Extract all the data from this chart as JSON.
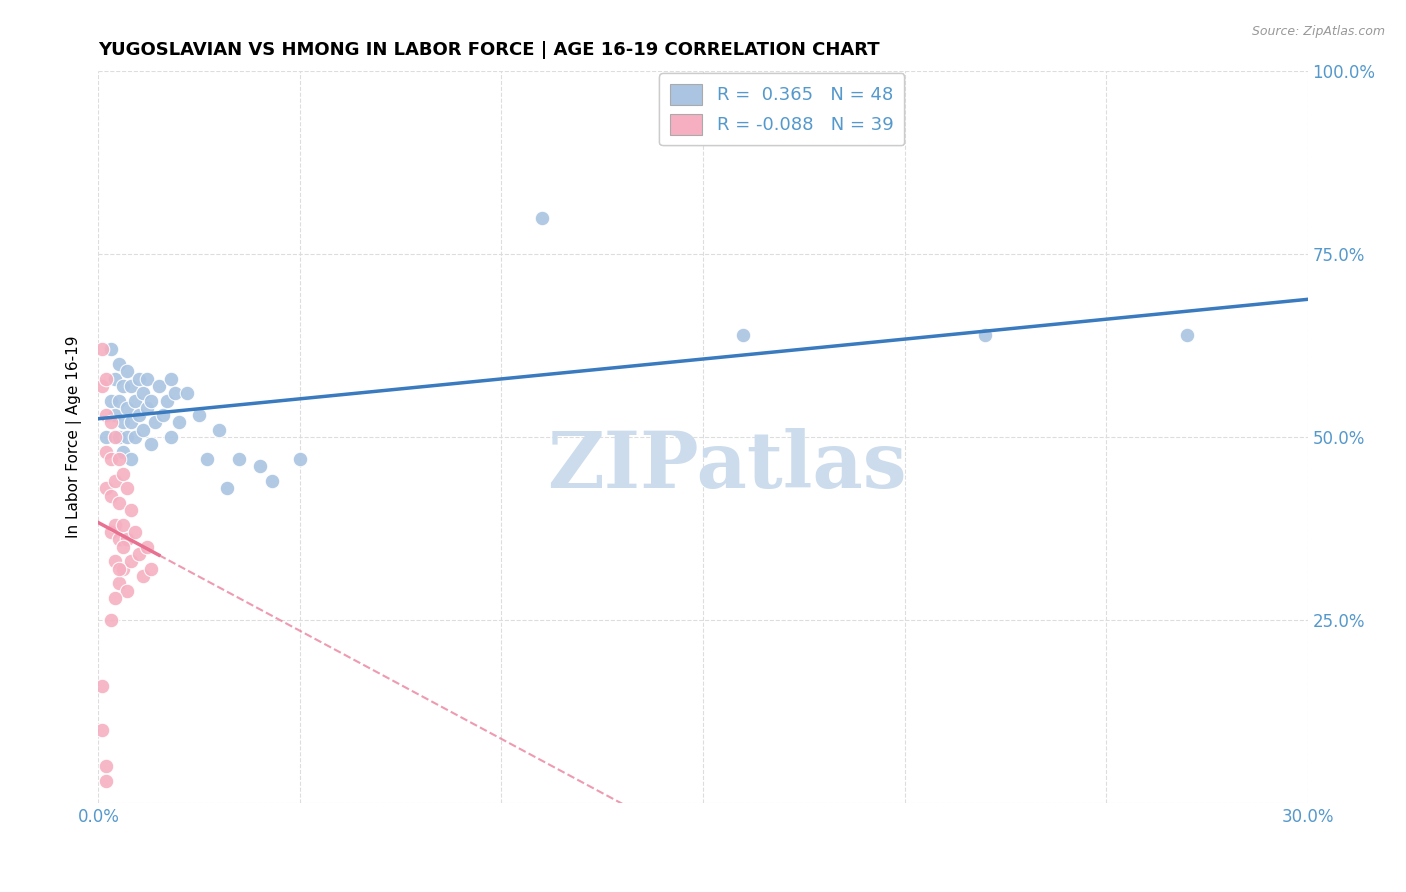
{
  "title": "YUGOSLAVIAN VS HMONG IN LABOR FORCE | AGE 16-19 CORRELATION CHART",
  "source": "Source: ZipAtlas.com",
  "ylabel": "In Labor Force | Age 16-19",
  "x_min": 0.0,
  "x_max": 0.3,
  "y_min": 0.0,
  "y_max": 1.0,
  "x_ticks": [
    0.0,
    0.05,
    0.1,
    0.15,
    0.2,
    0.25,
    0.3
  ],
  "x_tick_labels": [
    "0.0%",
    "",
    "",
    "",
    "",
    "",
    "30.0%"
  ],
  "y_ticks": [
    0.0,
    0.25,
    0.5,
    0.75,
    1.0
  ],
  "y_tick_labels": [
    "",
    "25.0%",
    "50.0%",
    "75.0%",
    "100.0%"
  ],
  "yugo_color": "#aac4e2",
  "hmong_color": "#f5afc0",
  "yugo_line_color": "#3a7abf",
  "hmong_line_color": "#e87090",
  "R_yugo": "0.365",
  "N_yugo": "48",
  "R_hmong": "-0.088",
  "N_hmong": "39",
  "watermark": "ZIPatlas",
  "watermark_color": "#ccdcec",
  "tick_label_color": "#5599cc",
  "background_color": "#ffffff",
  "grid_color": "#dddddd",
  "yugo_scatter": [
    [
      0.002,
      0.5
    ],
    [
      0.003,
      0.55
    ],
    [
      0.003,
      0.62
    ],
    [
      0.004,
      0.58
    ],
    [
      0.004,
      0.53
    ],
    [
      0.005,
      0.6
    ],
    [
      0.005,
      0.55
    ],
    [
      0.005,
      0.5
    ],
    [
      0.006,
      0.57
    ],
    [
      0.006,
      0.52
    ],
    [
      0.006,
      0.48
    ],
    [
      0.007,
      0.59
    ],
    [
      0.007,
      0.54
    ],
    [
      0.007,
      0.5
    ],
    [
      0.008,
      0.57
    ],
    [
      0.008,
      0.52
    ],
    [
      0.008,
      0.47
    ],
    [
      0.009,
      0.55
    ],
    [
      0.009,
      0.5
    ],
    [
      0.01,
      0.58
    ],
    [
      0.01,
      0.53
    ],
    [
      0.011,
      0.56
    ],
    [
      0.011,
      0.51
    ],
    [
      0.012,
      0.58
    ],
    [
      0.012,
      0.54
    ],
    [
      0.013,
      0.55
    ],
    [
      0.013,
      0.49
    ],
    [
      0.014,
      0.52
    ],
    [
      0.015,
      0.57
    ],
    [
      0.016,
      0.53
    ],
    [
      0.017,
      0.55
    ],
    [
      0.018,
      0.58
    ],
    [
      0.018,
      0.5
    ],
    [
      0.019,
      0.56
    ],
    [
      0.02,
      0.52
    ],
    [
      0.022,
      0.56
    ],
    [
      0.025,
      0.53
    ],
    [
      0.027,
      0.47
    ],
    [
      0.03,
      0.51
    ],
    [
      0.032,
      0.43
    ],
    [
      0.035,
      0.47
    ],
    [
      0.04,
      0.46
    ],
    [
      0.043,
      0.44
    ],
    [
      0.05,
      0.47
    ],
    [
      0.11,
      0.8
    ],
    [
      0.16,
      0.64
    ],
    [
      0.22,
      0.64
    ],
    [
      0.27,
      0.64
    ]
  ],
  "hmong_scatter": [
    [
      0.001,
      0.62
    ],
    [
      0.001,
      0.57
    ],
    [
      0.002,
      0.58
    ],
    [
      0.002,
      0.53
    ],
    [
      0.002,
      0.48
    ],
    [
      0.002,
      0.43
    ],
    [
      0.003,
      0.52
    ],
    [
      0.003,
      0.47
    ],
    [
      0.003,
      0.42
    ],
    [
      0.003,
      0.37
    ],
    [
      0.004,
      0.5
    ],
    [
      0.004,
      0.44
    ],
    [
      0.004,
      0.38
    ],
    [
      0.004,
      0.33
    ],
    [
      0.005,
      0.47
    ],
    [
      0.005,
      0.41
    ],
    [
      0.005,
      0.36
    ],
    [
      0.005,
      0.3
    ],
    [
      0.006,
      0.45
    ],
    [
      0.006,
      0.38
    ],
    [
      0.006,
      0.32
    ],
    [
      0.007,
      0.43
    ],
    [
      0.007,
      0.36
    ],
    [
      0.007,
      0.29
    ],
    [
      0.008,
      0.4
    ],
    [
      0.008,
      0.33
    ],
    [
      0.009,
      0.37
    ],
    [
      0.01,
      0.34
    ],
    [
      0.011,
      0.31
    ],
    [
      0.012,
      0.35
    ],
    [
      0.013,
      0.32
    ],
    [
      0.001,
      0.16
    ],
    [
      0.001,
      0.1
    ],
    [
      0.002,
      0.05
    ],
    [
      0.002,
      0.03
    ],
    [
      0.003,
      0.25
    ],
    [
      0.004,
      0.28
    ],
    [
      0.005,
      0.32
    ],
    [
      0.006,
      0.35
    ]
  ]
}
